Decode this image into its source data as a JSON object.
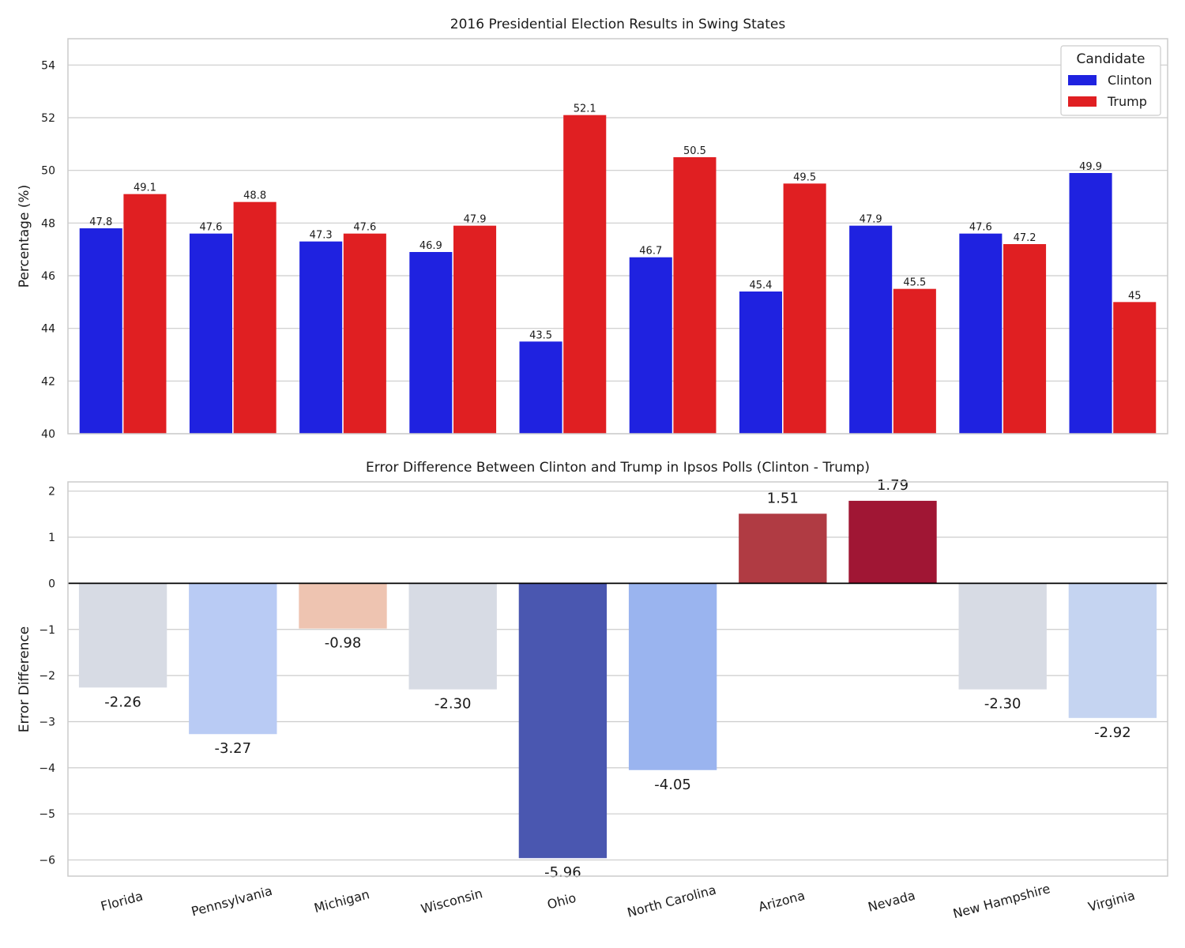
{
  "chart_data": [
    {
      "type": "bar",
      "title": "2016 Presidential Election Results in Swing States",
      "xlabel": "",
      "ylabel": "Percentage (%)",
      "ylim": [
        40,
        55
      ],
      "yticks": [
        40,
        42,
        44,
        46,
        48,
        50,
        52,
        54
      ],
      "categories": [
        "Florida",
        "Pennsylvania",
        "Michigan",
        "Wisconsin",
        "Ohio",
        "North Carolina",
        "Arizona",
        "Nevada",
        "New Hampshire",
        "Virginia"
      ],
      "series": [
        {
          "name": "Clinton",
          "color": "#1f22e0",
          "values": [
            47.8,
            47.6,
            47.3,
            46.9,
            43.5,
            46.7,
            45.4,
            47.9,
            47.6,
            49.9
          ],
          "labels": [
            "47.8",
            "47.6",
            "47.3",
            "46.9",
            "43.5",
            "46.7",
            "45.4",
            "47.9",
            "47.6",
            "49.9"
          ]
        },
        {
          "name": "Trump",
          "color": "#e01f22",
          "values": [
            49.1,
            48.8,
            47.6,
            47.9,
            52.1,
            50.5,
            49.5,
            45.5,
            47.2,
            45.0
          ],
          "labels": [
            "49.1",
            "48.8",
            "47.6",
            "47.9",
            "52.1",
            "50.5",
            "49.5",
            "45.5",
            "47.2",
            "45"
          ]
        }
      ],
      "legend": {
        "title": "Candidate",
        "placement": "top-right"
      },
      "grid": true
    },
    {
      "type": "bar",
      "title": "Error Difference Between Clinton and Trump in Ipsos Polls (Clinton - Trump)",
      "xlabel": "",
      "ylabel": "Error Difference",
      "ylim": [
        -6.35,
        2.2
      ],
      "yticks": [
        -6,
        -5,
        -4,
        -3,
        -2,
        -1,
        0,
        1,
        2
      ],
      "categories": [
        "Florida",
        "Pennsylvania",
        "Michigan",
        "Wisconsin",
        "Ohio",
        "North Carolina",
        "Arizona",
        "Nevada",
        "New Hampshire",
        "Virginia"
      ],
      "values": [
        -2.26,
        -3.27,
        -0.98,
        -2.3,
        -5.96,
        -4.05,
        1.51,
        1.79,
        -2.3,
        -2.92
      ],
      "labels": [
        "-2.26",
        "-3.27",
        "-0.98",
        "-2.30",
        "-5.96",
        "-4.05",
        "1.51",
        "1.79",
        "-2.30",
        "-2.92"
      ],
      "colors": [
        "#d7dbe4",
        "#b9cbf4",
        "#eec4b1",
        "#d7dbe4",
        "#4a57b0",
        "#9ab4ef",
        "#b03b43",
        "#a01634",
        "#d7dbe4",
        "#c5d4f1"
      ],
      "grid": true,
      "zero_line": true
    }
  ]
}
